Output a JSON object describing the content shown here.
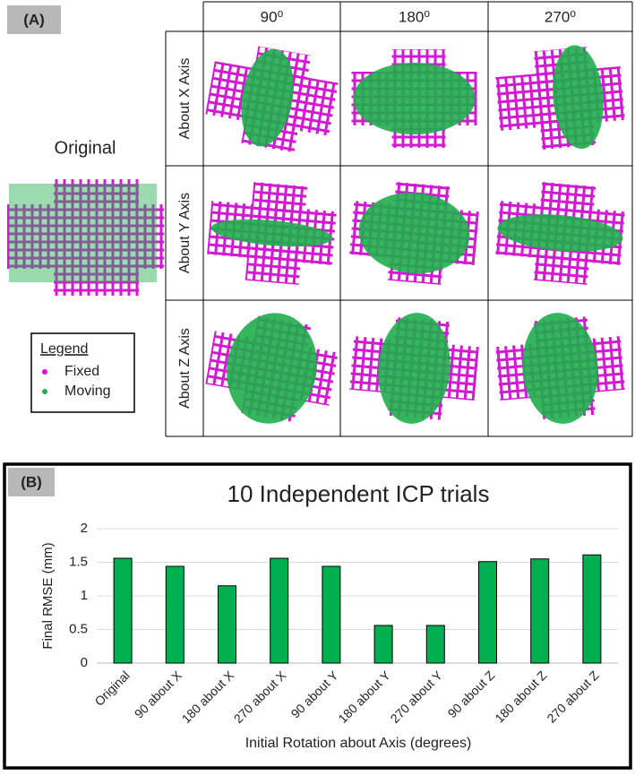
{
  "panel_a": {
    "label": "(A)",
    "original": "Original",
    "columns": [
      "90⁰",
      "180⁰",
      "270⁰"
    ],
    "rows": [
      "About X Axis",
      "About Y Axis",
      "About Z Axis"
    ],
    "legend": {
      "title": "Legend",
      "items": [
        {
          "name": "Fixed",
          "color": "#e600e6"
        },
        {
          "name": "Moving",
          "color": "#1fae4c"
        }
      ]
    }
  },
  "panel_b_label": "(B)",
  "chart_data": {
    "type": "bar",
    "title": "10 Independent ICP trials",
    "x_label": "Initial Rotation about Axis (degrees)",
    "y_label": "Final RMSE (mm)",
    "categories": [
      "Original",
      "90 about X",
      "180 about X",
      "270 about X",
      "90 about Y",
      "180 about Y",
      "270 about Y",
      "90 about Z",
      "180 about Z",
      "270 about Z"
    ],
    "values": [
      1.56,
      1.44,
      1.15,
      1.56,
      1.44,
      0.56,
      0.56,
      1.51,
      1.55,
      1.61
    ],
    "color": "#00b050",
    "ylim": [
      0,
      2
    ],
    "yticks": [
      0,
      0.5,
      1,
      1.5,
      2
    ],
    "grid": true
  }
}
